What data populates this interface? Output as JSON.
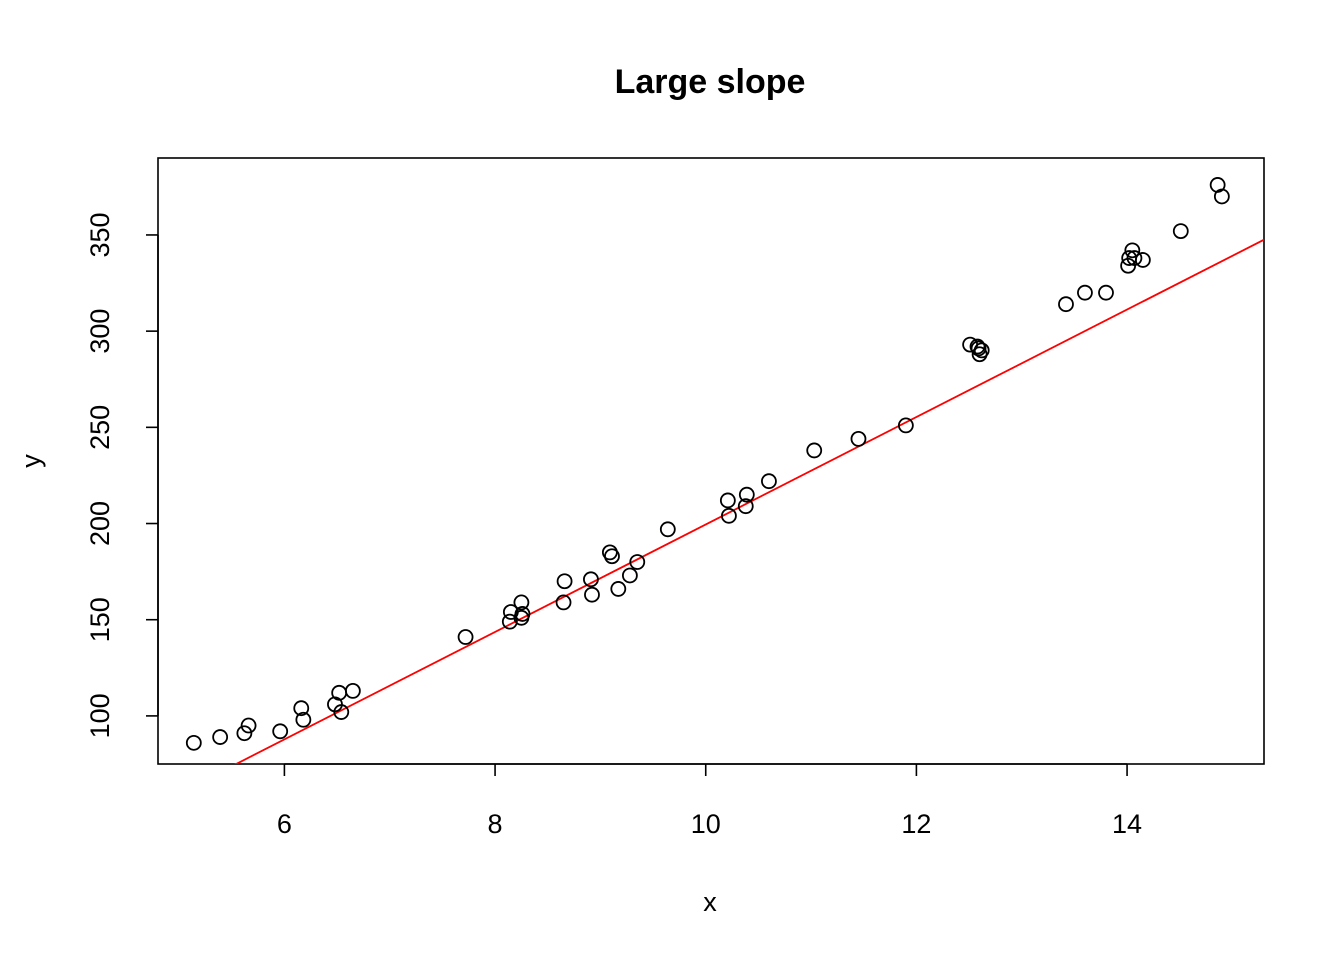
{
  "chart_data": {
    "type": "scatter",
    "title": "Large slope",
    "xlabel": "x",
    "ylabel": "y",
    "xlim": [
      4.8,
      15.3
    ],
    "ylim": [
      75,
      390
    ],
    "xticks": [
      6,
      8,
      10,
      12,
      14
    ],
    "yticks": [
      100,
      150,
      200,
      250,
      300,
      350
    ],
    "grid": false,
    "legend": "none",
    "point_style": "open-circle",
    "point_color": "#000000",
    "fit_line": {
      "color": "#ff0000",
      "slope": 27.93,
      "intercept": -79.8,
      "x_range": [
        4.8,
        15.3
      ]
    },
    "x": [
      5.14,
      5.39,
      5.62,
      5.66,
      5.96,
      6.16,
      6.18,
      6.48,
      6.52,
      6.54,
      6.65,
      7.72,
      8.14,
      8.15,
      8.25,
      8.26,
      8.25,
      8.65,
      8.66,
      8.91,
      8.92,
      9.09,
      9.11,
      9.17,
      9.28,
      9.35,
      9.64,
      10.21,
      10.22,
      10.38,
      10.39,
      10.6,
      11.03,
      11.45,
      11.9,
      12.51,
      12.58,
      12.6,
      12.59,
      12.62,
      13.42,
      13.6,
      13.8,
      14.01,
      14.02,
      14.05,
      14.07,
      14.15,
      14.51,
      14.86,
      14.9
    ],
    "y": [
      86,
      89,
      91,
      95,
      92,
      104,
      98,
      106,
      112,
      102,
      113,
      141,
      149,
      154,
      151,
      153,
      159,
      159,
      170,
      171,
      163,
      185,
      183,
      166,
      173,
      180,
      197,
      212,
      204,
      209,
      215,
      222,
      238,
      244,
      251,
      293,
      292,
      288,
      291,
      290,
      314,
      320,
      320,
      334,
      338,
      342,
      338,
      337,
      352,
      376,
      370
    ]
  }
}
